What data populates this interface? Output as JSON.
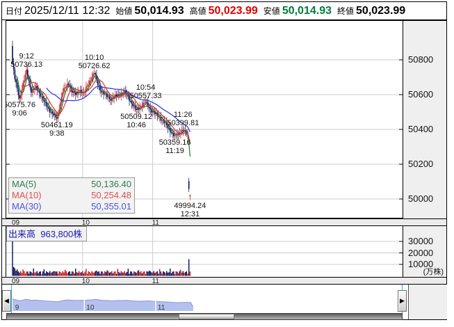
{
  "header": {
    "date_label": "日付",
    "date_value": "2025/12/11 12:32",
    "open_label": "始値",
    "open_value": "50,014.93",
    "high_label": "高値",
    "high_value": "50,023.99",
    "low_label": "安値",
    "low_value": "50,014.93",
    "close_label": "終値",
    "close_value": "50,023.99"
  },
  "colors": {
    "up_candle": "#c41717",
    "down_candle": "#0b0b55",
    "ma5": "#157a38",
    "ma10": "#e23333",
    "ma30": "#2b35d8",
    "grid": "#cccccc",
    "high_text": "#e00000",
    "low_text": "#00803c",
    "nav_fill": "#b4c1ef",
    "nav_stroke": "#8893d6",
    "volume_label": "#1b1bb0"
  },
  "ma_legend": [
    {
      "label": "MA(5)",
      "value": "50,136.40",
      "color": "#2e7d4f"
    },
    {
      "label": "MA(10)",
      "value": "50,254.48",
      "color": "#e05050"
    },
    {
      "label": "MA(30)",
      "value": "50,355.01",
      "color": "#5050e0"
    }
  ],
  "price_axis": [
    50800,
    50600,
    50400,
    50200,
    50000
  ],
  "volume_axis": [
    30000,
    20000,
    10000
  ],
  "volume_unit": "(万株)",
  "volume_legend": {
    "label": "出来高",
    "value": "963,800株"
  },
  "time_axis": [
    {
      "label": "09",
      "t": 0
    },
    {
      "label": "10",
      "t": 60
    },
    {
      "label": "11",
      "t": 120
    }
  ],
  "nav_labels": [
    {
      "label": "9",
      "t": 1
    },
    {
      "label": "10",
      "t": 61
    },
    {
      "label": "11",
      "t": 121
    }
  ],
  "chart_data": {
    "type": "candlestick",
    "interval": "1min",
    "session": "09:00-11:30, 12:30-12:31 (lunch gap compressed)",
    "price_range_shown": [
      49884,
      51004
    ],
    "current_bar": {
      "open": 50014.93,
      "high": 50023.99,
      "low": 50014.93,
      "close": 50023.99
    },
    "waypoints": [
      [
        0,
        50780
      ],
      [
        2,
        50690
      ],
      [
        6,
        50576
      ],
      [
        9,
        50660
      ],
      [
        12,
        50736
      ],
      [
        16,
        50620
      ],
      [
        20,
        50640
      ],
      [
        24,
        50600
      ],
      [
        28,
        50545
      ],
      [
        33,
        50500
      ],
      [
        38,
        50461
      ],
      [
        43,
        50620
      ],
      [
        48,
        50664
      ],
      [
        51,
        50620
      ],
      [
        54,
        50600
      ],
      [
        58,
        50625
      ],
      [
        61,
        50605
      ],
      [
        64,
        50650
      ],
      [
        67,
        50690
      ],
      [
        70,
        50727
      ],
      [
        73,
        50660
      ],
      [
        76,
        50620
      ],
      [
        79,
        50600
      ],
      [
        84,
        50575
      ],
      [
        88,
        50590
      ],
      [
        92,
        50605
      ],
      [
        96,
        50615
      ],
      [
        100,
        50575
      ],
      [
        103,
        50540
      ],
      [
        106,
        50509
      ],
      [
        110,
        50535
      ],
      [
        114,
        50557
      ],
      [
        118,
        50515
      ],
      [
        122,
        50490
      ],
      [
        126,
        50470
      ],
      [
        130,
        50440
      ],
      [
        133,
        50410
      ],
      [
        136,
        50385
      ],
      [
        139,
        50359
      ],
      [
        142,
        50375
      ],
      [
        146,
        50400
      ],
      [
        149,
        50375
      ],
      [
        150,
        50365
      ],
      [
        151,
        50060
      ],
      [
        152,
        50024
      ]
    ],
    "swing_annotations": [
      {
        "kind": "high",
        "time": "9:12",
        "price": "50736.13",
        "t": 12,
        "p": 50736.13
      },
      {
        "kind": "low",
        "time": "9:06",
        "price": "50575.76",
        "t": 6,
        "p": 50575.76
      },
      {
        "kind": "low",
        "time": "9:38",
        "price": "50461.19",
        "t": 38,
        "p": 50461.19
      },
      {
        "kind": "high",
        "time": "10:10",
        "price": "50726.62",
        "t": 70,
        "p": 50726.62
      },
      {
        "kind": "low",
        "time": "10:46",
        "price": "50509.12",
        "t": 106,
        "p": 50509.12
      },
      {
        "kind": "high",
        "time": "10:54",
        "price": "50557.33",
        "t": 114,
        "p": 50557.33
      },
      {
        "kind": "low",
        "time": "11:19",
        "price": "50359.16",
        "t": 139,
        "p": 50359.16
      },
      {
        "kind": "high",
        "time": "11:26",
        "price": "50399.81",
        "t": 146,
        "p": 50399.81
      },
      {
        "kind": "low",
        "time": "12:31",
        "price": "49994.24",
        "t": 152,
        "p": 49994.24
      }
    ],
    "volume_spikes": [
      {
        "t": 0,
        "v": 38000
      },
      {
        "t": 151,
        "v": 14500
      }
    ]
  }
}
